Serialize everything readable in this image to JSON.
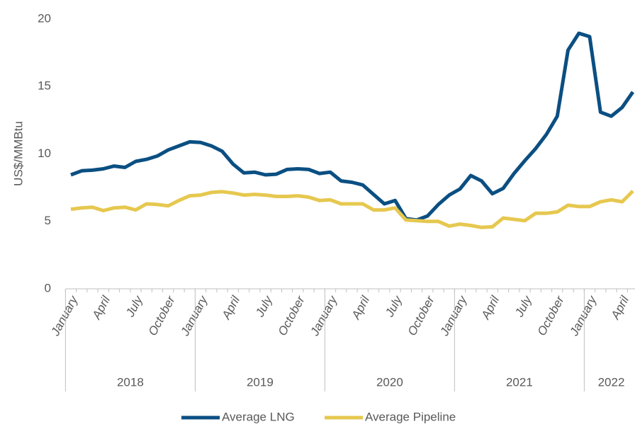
{
  "chart_data": {
    "type": "line",
    "y_label": "US$/MMBtu",
    "categories": [
      "January",
      null,
      null,
      "April",
      null,
      null,
      "July",
      null,
      null,
      "October",
      null,
      null,
      "January",
      null,
      null,
      "April",
      null,
      null,
      "July",
      null,
      null,
      "October",
      null,
      null,
      "January",
      null,
      null,
      "April",
      null,
      null,
      "July",
      null,
      null,
      "October",
      null,
      null,
      "January",
      null,
      null,
      "April",
      null,
      null,
      "July",
      null,
      null,
      "October",
      null,
      null,
      "January",
      null,
      null,
      "April",
      null
    ],
    "years": [
      "2018",
      "2019",
      "2020",
      "2021",
      "2022"
    ],
    "series": [
      {
        "name": "Average LNG",
        "color": "#0b4f82",
        "values": [
          8.45,
          8.75,
          8.8,
          8.9,
          9.1,
          9.0,
          9.45,
          9.6,
          9.85,
          10.3,
          10.6,
          10.9,
          10.85,
          10.6,
          10.2,
          9.25,
          8.6,
          8.65,
          8.45,
          8.5,
          8.85,
          8.9,
          8.85,
          8.55,
          8.65,
          8.0,
          7.9,
          7.7,
          7.0,
          6.3,
          6.55,
          5.2,
          5.1,
          5.4,
          6.25,
          6.95,
          7.4,
          8.4,
          8.0,
          7.05,
          7.45,
          8.55,
          9.5,
          10.4,
          11.45,
          12.8,
          17.7,
          18.95,
          18.7,
          13.1,
          12.8,
          13.45,
          14.6
        ]
      },
      {
        "name": "Average Pipeline",
        "color": "#e6c84f",
        "values": [
          5.9,
          6.0,
          6.05,
          5.8,
          6.0,
          6.05,
          5.85,
          6.3,
          6.25,
          6.15,
          6.55,
          6.9,
          6.95,
          7.15,
          7.2,
          7.1,
          6.95,
          7.0,
          6.95,
          6.85,
          6.85,
          6.9,
          6.8,
          6.55,
          6.6,
          6.3,
          6.3,
          6.3,
          5.85,
          5.85,
          6.0,
          5.1,
          5.05,
          5.0,
          5.0,
          4.65,
          4.8,
          4.7,
          4.55,
          4.6,
          5.25,
          5.15,
          5.05,
          5.6,
          5.6,
          5.7,
          6.2,
          6.1,
          6.1,
          6.45,
          6.6,
          6.45,
          7.25
        ]
      }
    ],
    "ylim": [
      0,
      20
    ],
    "yticks": [
      0,
      5,
      10,
      15,
      20
    ],
    "grid": false
  }
}
